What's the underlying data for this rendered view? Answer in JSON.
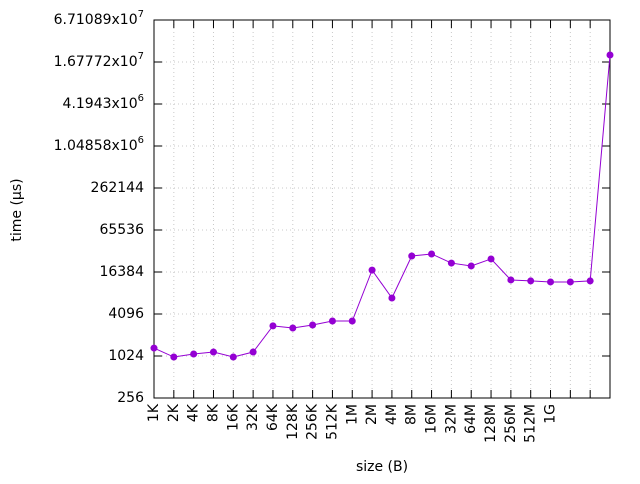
{
  "chart_data": {
    "type": "line",
    "x_label": "size (B)",
    "y_label": "time (µs)",
    "categories": [
      "1K",
      "2K",
      "4K",
      "8K",
      "16K",
      "32K",
      "64K",
      "128K",
      "256K",
      "512K",
      "1M",
      "2M",
      "4M",
      "8M",
      "16M",
      "32M",
      "64M",
      "128M",
      "256M",
      "512M",
      "1G",
      null,
      null,
      null
    ],
    "series": [
      {
        "color": "#9400d3",
        "values": [
          1330,
          990,
          1093,
          1167,
          990,
          1167,
          2770,
          2580,
          2850,
          3250,
          3250,
          17430,
          6940,
          27800,
          29700,
          22000,
          20000,
          25200,
          12600,
          12200,
          11800,
          11800,
          12200,
          21150000
        ]
      }
    ],
    "ylog": true,
    "ylim": [
      256,
      67108864
    ],
    "yticks": [
      256,
      1024,
      4096,
      16384,
      65536,
      262144,
      {
        "value": 1048576,
        "label": "1.04858x10^6"
      },
      {
        "value": 4194304,
        "label": "4.1943x10^6"
      },
      {
        "value": 16777216,
        "label": "1.67772x10^7"
      },
      {
        "value": 67108864,
        "label": "6.71089x10^7"
      }
    ],
    "grid": true
  }
}
